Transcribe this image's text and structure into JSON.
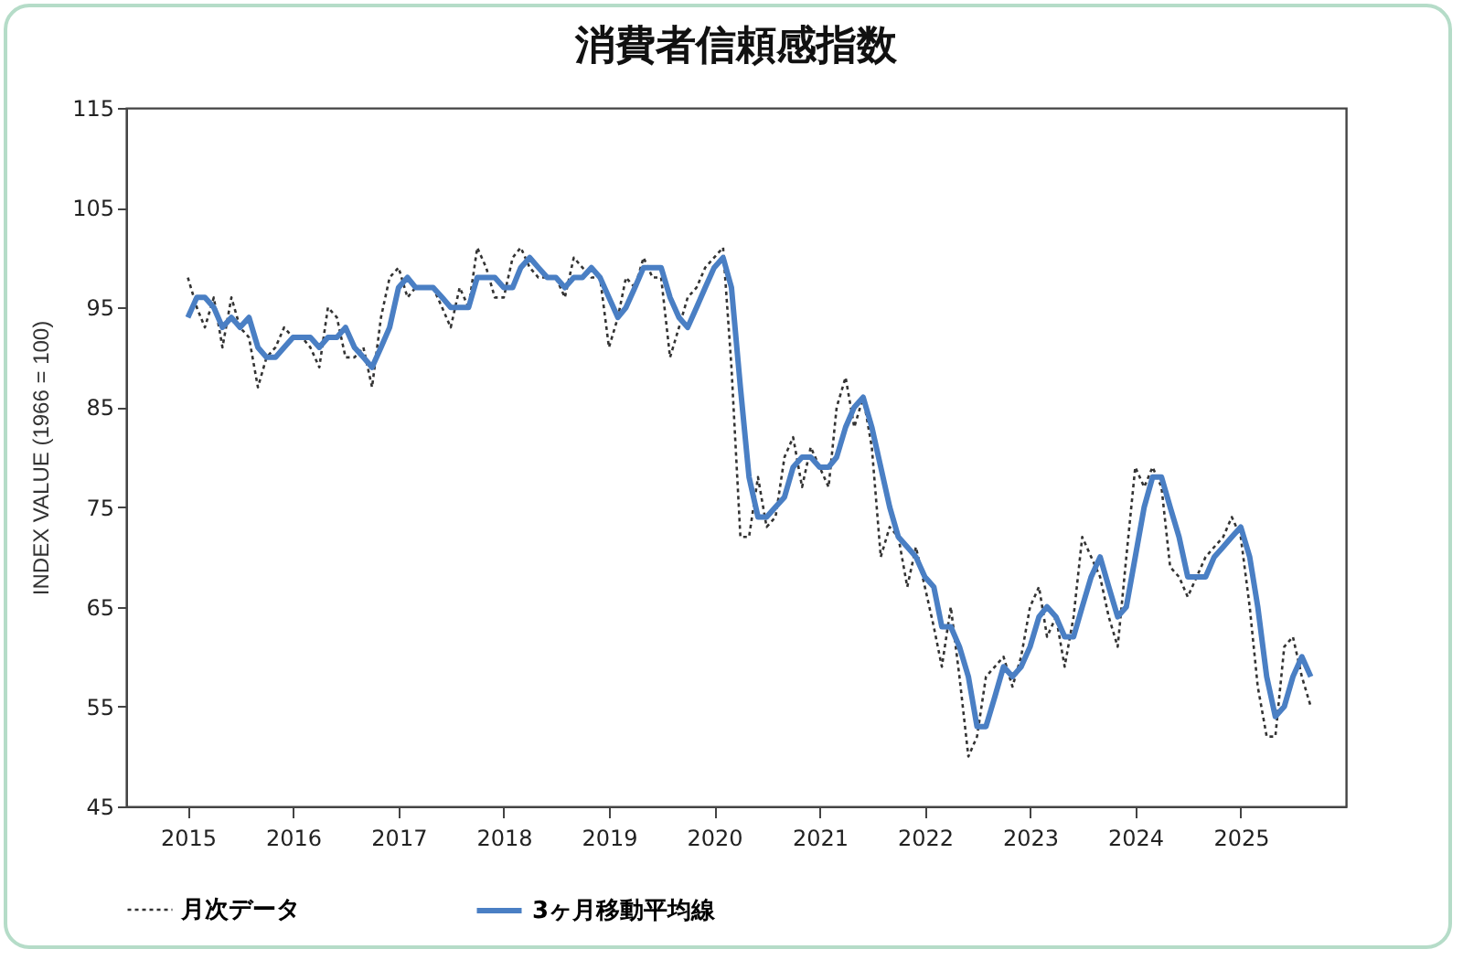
{
  "chart_data": {
    "type": "line",
    "title": "消費者信頼感指数",
    "ylabel": "INDEX VALUE (1966 = 100)",
    "x": [
      "2015-01",
      "2015-02",
      "2015-03",
      "2015-04",
      "2015-05",
      "2015-06",
      "2015-07",
      "2015-08",
      "2015-09",
      "2015-10",
      "2015-11",
      "2015-12",
      "2016-01",
      "2016-02",
      "2016-03",
      "2016-04",
      "2016-05",
      "2016-06",
      "2016-07",
      "2016-08",
      "2016-09",
      "2016-10",
      "2016-11",
      "2016-12",
      "2017-01",
      "2017-02",
      "2017-03",
      "2017-04",
      "2017-05",
      "2017-06",
      "2017-07",
      "2017-08",
      "2017-09",
      "2017-10",
      "2017-11",
      "2017-12",
      "2018-01",
      "2018-02",
      "2018-03",
      "2018-04",
      "2018-05",
      "2018-06",
      "2018-07",
      "2018-08",
      "2018-09",
      "2018-10",
      "2018-11",
      "2018-12",
      "2019-01",
      "2019-02",
      "2019-03",
      "2019-04",
      "2019-05",
      "2019-06",
      "2019-07",
      "2019-08",
      "2019-09",
      "2019-10",
      "2019-11",
      "2019-12",
      "2020-01",
      "2020-02",
      "2020-03",
      "2020-04",
      "2020-05",
      "2020-06",
      "2020-07",
      "2020-08",
      "2020-09",
      "2020-10",
      "2020-11",
      "2020-12",
      "2021-01",
      "2021-02",
      "2021-03",
      "2021-04",
      "2021-05",
      "2021-06",
      "2021-07",
      "2021-08",
      "2021-09",
      "2021-10",
      "2021-11",
      "2021-12",
      "2022-01",
      "2022-02",
      "2022-03",
      "2022-04",
      "2022-05",
      "2022-06",
      "2022-07",
      "2022-08",
      "2022-09",
      "2022-10",
      "2022-11",
      "2022-12",
      "2023-01",
      "2023-02",
      "2023-03",
      "2023-04",
      "2023-05",
      "2023-06",
      "2023-07",
      "2023-08",
      "2023-09",
      "2023-10",
      "2023-11",
      "2023-12",
      "2024-01",
      "2024-02",
      "2024-03",
      "2024-04",
      "2024-05",
      "2024-06",
      "2024-07",
      "2024-08",
      "2024-09",
      "2024-10",
      "2024-11",
      "2024-12",
      "2025-01",
      "2025-02",
      "2025-03",
      "2025-04",
      "2025-05",
      "2025-06",
      "2025-07",
      "2025-08",
      "2025-09"
    ],
    "series": [
      {
        "name": "月次データ",
        "color": "#333333",
        "line_style": "dotted",
        "values": [
          98,
          95,
          93,
          96,
          91,
          96,
          93,
          92,
          87,
          90,
          91,
          93,
          92,
          92,
          91,
          89,
          95,
          94,
          90,
          90,
          91,
          87,
          94,
          98,
          99,
          96,
          97,
          97,
          97,
          95,
          93,
          97,
          95,
          101,
          99,
          96,
          96,
          100,
          101,
          99,
          98,
          98,
          98,
          96,
          100,
          99,
          98,
          98,
          91,
          94,
          98,
          97,
          100,
          98,
          98,
          90,
          93,
          96,
          97,
          99,
          100,
          101,
          89,
          72,
          72,
          78,
          73,
          74,
          80,
          82,
          77,
          81,
          79,
          77,
          85,
          88,
          83,
          86,
          81,
          70,
          73,
          72,
          67,
          71,
          67,
          63,
          59,
          65,
          58,
          50,
          52,
          58,
          59,
          60,
          57,
          60,
          65,
          67,
          62,
          64,
          59,
          64,
          72,
          70,
          68,
          64,
          61,
          70,
          79,
          77,
          79,
          77,
          69,
          68,
          66,
          68,
          70,
          71,
          72,
          74,
          72,
          65,
          57,
          52,
          52,
          61,
          62,
          58,
          55
        ]
      },
      {
        "name": "3ヶ月移動平均線",
        "color": "#4a7fc4",
        "line_style": "solid",
        "values": [
          94,
          96,
          96,
          95,
          93,
          94,
          93,
          94,
          91,
          90,
          90,
          91,
          92,
          92,
          92,
          91,
          92,
          92,
          93,
          91,
          90,
          89,
          91,
          93,
          97,
          98,
          97,
          97,
          97,
          96,
          95,
          95,
          95,
          98,
          98,
          98,
          97,
          97,
          99,
          100,
          99,
          98,
          98,
          97,
          98,
          98,
          99,
          98,
          96,
          94,
          95,
          97,
          99,
          99,
          99,
          96,
          94,
          93,
          95,
          97,
          99,
          100,
          97,
          87,
          78,
          74,
          74,
          75,
          76,
          79,
          80,
          80,
          79,
          79,
          80,
          83,
          85,
          86,
          83,
          79,
          75,
          72,
          71,
          70,
          68,
          67,
          63,
          63,
          61,
          58,
          53,
          53,
          56,
          59,
          58,
          59,
          61,
          64,
          65,
          64,
          62,
          62,
          65,
          68,
          70,
          67,
          64,
          65,
          70,
          75,
          78,
          78,
          75,
          72,
          68,
          68,
          68,
          70,
          71,
          72,
          73,
          70,
          65,
          58,
          54,
          55,
          58,
          60,
          58
        ]
      }
    ],
    "xlim": [
      "2014-06",
      "2026-01"
    ],
    "xticks": [
      "2015",
      "2016",
      "2017",
      "2018",
      "2019",
      "2020",
      "2021",
      "2022",
      "2023",
      "2024",
      "2025"
    ],
    "ylim": [
      45,
      115
    ],
    "yticks": [
      45,
      55,
      65,
      75,
      85,
      95,
      105,
      115
    ],
    "grid": false,
    "legend": "bottom",
    "marker": "none"
  }
}
